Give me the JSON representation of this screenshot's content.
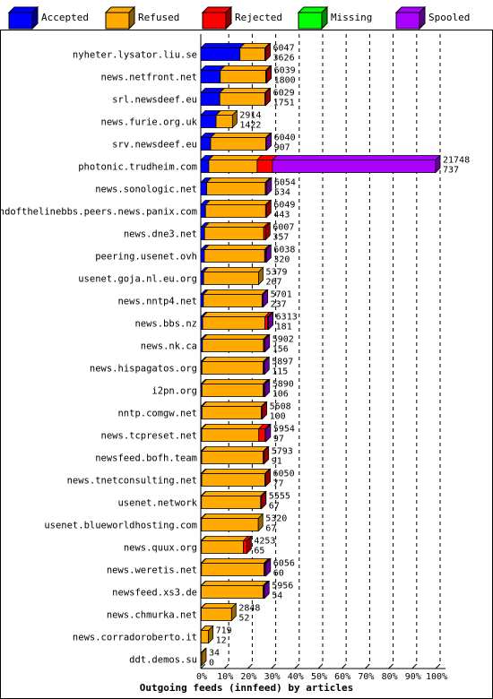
{
  "chart_data": {
    "type": "bar",
    "orientation": "horizontal",
    "stacked": true,
    "xlabel": "Outgoing feeds (innfeed) by articles",
    "xlim": [
      0,
      100
    ],
    "x_unit": "percent",
    "ticks": [
      "0%",
      "10%",
      "20%",
      "30%",
      "40%",
      "50%",
      "60%",
      "70%",
      "80%",
      "90%",
      "100%"
    ],
    "grid": true,
    "legend_position": "top",
    "legend": [
      {
        "key": "accepted",
        "label": "Accepted",
        "color": "#0000ff"
      },
      {
        "key": "refused",
        "label": "Refused",
        "color": "#ffaa00"
      },
      {
        "key": "rejected",
        "label": "Rejected",
        "color": "#ff0000"
      },
      {
        "key": "missing",
        "label": "Missing",
        "color": "#00ff00"
      },
      {
        "key": "spooled",
        "label": "Spooled",
        "color": "#aa00ff"
      }
    ],
    "categories": [
      "nyheter.lysator.liu.se",
      "news.netfront.net",
      "srl.newsdeef.eu",
      "news.furie.org.uk",
      "srv.newsdeef.eu",
      "photonic.trudheim.com",
      "news.sonologic.net",
      "endofthelinebbs.peers.news.panix.com",
      "news.dne3.net",
      "peering.usenet.ovh",
      "usenet.goja.nl.eu.org",
      "news.nntp4.net",
      "news.bbs.nz",
      "news.nk.ca",
      "news.hispagatos.org",
      "i2pn.org",
      "nntp.comgw.net",
      "news.tcpreset.net",
      "newsfeed.bofh.team",
      "news.tnetconsulting.net",
      "usenet.network",
      "usenet.blueworldhosting.com",
      "news.quux.org",
      "news.weretis.net",
      "newsfeed.xs3.de",
      "news.chmurka.net",
      "news.corradoroberto.it",
      "ddt.demos.su"
    ],
    "offered": [
      6047,
      6039,
      6029,
      2914,
      6040,
      21748,
      6054,
      6049,
      6007,
      6038,
      5379,
      5701,
      6313,
      5902,
      5897,
      5890,
      5608,
      5954,
      5793,
      6050,
      5555,
      5320,
      4253,
      6056,
      5956,
      2848,
      719,
      34
    ],
    "accepted_count": [
      3626,
      1800,
      1751,
      1422,
      907,
      737,
      534,
      443,
      357,
      320,
      267,
      237,
      181,
      156,
      115,
      106,
      100,
      97,
      91,
      77,
      67,
      67,
      65,
      60,
      54,
      52,
      12,
      0
    ],
    "series": [
      {
        "key": "accepted",
        "name": "Accepted",
        "values": [
          16.7,
          8.3,
          8.1,
          6.5,
          4.2,
          3.4,
          2.5,
          2.0,
          1.6,
          1.5,
          1.2,
          1.1,
          0.8,
          0.7,
          0.5,
          0.5,
          0.5,
          0.4,
          0.4,
          0.4,
          0.3,
          0.3,
          0.3,
          0.3,
          0.2,
          0.2,
          0.1,
          0
        ]
      },
      {
        "key": "refused",
        "name": "Refused",
        "values": [
          10.6,
          19.4,
          19.2,
          7.0,
          23.5,
          20.6,
          25.0,
          25.6,
          25.2,
          25.7,
          23.4,
          25.0,
          26.5,
          26.0,
          26.1,
          26.1,
          25.3,
          24.3,
          26.2,
          26.9,
          25.2,
          24.2,
          17.8,
          26.6,
          26.3,
          12.9,
          3.2,
          0.2
        ]
      },
      {
        "key": "rejected",
        "name": "Rejected",
        "values": [
          0.3,
          0.1,
          0.4,
          0,
          0,
          6.5,
          0.3,
          0.2,
          0.8,
          0.4,
          0,
          0.1,
          1.2,
          0.3,
          0.2,
          0.4,
          0.1,
          2.7,
          0.1,
          0.1,
          0.1,
          0,
          1.5,
          0.5,
          0.3,
          0,
          0,
          0
        ]
      },
      {
        "key": "missing",
        "name": "Missing",
        "values": [
          0,
          0,
          0,
          0,
          0,
          0,
          0,
          0,
          0,
          0,
          0,
          0,
          0,
          0,
          0,
          0,
          0,
          0,
          0,
          0,
          0,
          0,
          0,
          0,
          0,
          0,
          0,
          0
        ]
      },
      {
        "key": "spooled",
        "name": "Spooled",
        "values": [
          0,
          0,
          0,
          0,
          0.2,
          69.5,
          0.1,
          0,
          0,
          0.2,
          0,
          0.1,
          0.3,
          0.2,
          0.4,
          0.1,
          0,
          0.4,
          0,
          0,
          0,
          0,
          0,
          0.1,
          0.2,
          0,
          0,
          0
        ]
      }
    ]
  }
}
